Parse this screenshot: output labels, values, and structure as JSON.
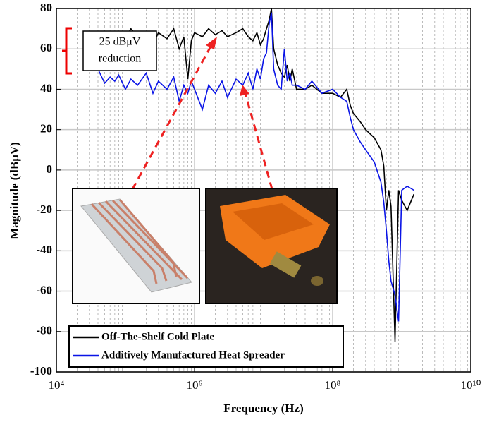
{
  "chart_data": {
    "type": "line",
    "xscale": "log",
    "xlabel": "Frequency (Hz)",
    "ylabel": "Magnitude (dBμV)",
    "annotation": [
      "25 dBμV",
      "reduction"
    ],
    "xlim": [
      10000,
      10000000000
    ],
    "xticks": [
      {
        "value": 10000,
        "label": "10⁴"
      },
      {
        "value": 1000000,
        "label": "10⁶"
      },
      {
        "value": 100000000,
        "label": "10⁸"
      },
      {
        "value": 10000000000,
        "label": "10¹⁰"
      }
    ],
    "ylim": [
      -100,
      80
    ],
    "yticks": [
      -100,
      -80,
      -60,
      -40,
      -20,
      0,
      20,
      40,
      60,
      80
    ],
    "grid": true,
    "legend": "lower left",
    "x": [
      40000,
      50000,
      60000,
      70000,
      80000,
      100000,
      120000,
      150000,
      200000,
      250000,
      300000,
      400000,
      500000,
      600000,
      700000,
      800000,
      900000,
      1000000,
      1300000,
      1600000,
      2000000,
      2500000,
      3000000,
      4000000,
      5000000,
      6000000,
      7000000,
      8000000,
      9000000,
      10000000,
      11000000,
      12000000,
      13000000,
      14000000,
      16000000,
      18000000,
      20000000,
      22000000,
      24000000,
      26000000,
      30000000,
      40000000,
      50000000,
      70000000,
      100000000,
      130000000,
      160000000,
      180000000,
      200000000,
      250000000,
      300000000,
      400000000,
      500000000,
      550000000,
      600000000,
      650000000,
      700000000,
      800000000,
      900000000,
      1000000000,
      1200000000,
      1500000000
    ],
    "series": [
      {
        "name": "Off-The-Shelf Cold Plate",
        "color": "#000000",
        "values": [
          66,
          62,
          67,
          63,
          68,
          65,
          70,
          66,
          68,
          62,
          68,
          65,
          70,
          60,
          66,
          45,
          64,
          68,
          66,
          70,
          67,
          69,
          66,
          68,
          70,
          66,
          64,
          68,
          62,
          65,
          70,
          74,
          80,
          60,
          52,
          48,
          46,
          52,
          44,
          50,
          40,
          40,
          42,
          38,
          38,
          36,
          40,
          32,
          28,
          24,
          20,
          16,
          10,
          2,
          -20,
          -10,
          -18,
          -85,
          -10,
          -15,
          -20,
          -12
        ]
      },
      {
        "name": "Additively Manufactured Heat Spreader",
        "color": "#0a14e6",
        "values": [
          50,
          43,
          46,
          44,
          47,
          40,
          45,
          42,
          48,
          38,
          44,
          40,
          46,
          34,
          42,
          38,
          44,
          40,
          30,
          42,
          38,
          44,
          36,
          45,
          42,
          48,
          40,
          50,
          45,
          55,
          58,
          72,
          78,
          50,
          42,
          40,
          60,
          44,
          48,
          42,
          42,
          40,
          44,
          38,
          40,
          36,
          34,
          26,
          20,
          14,
          10,
          4,
          -6,
          -16,
          -30,
          -45,
          -55,
          -62,
          -75,
          -10,
          -8,
          -10
        ]
      }
    ]
  }
}
